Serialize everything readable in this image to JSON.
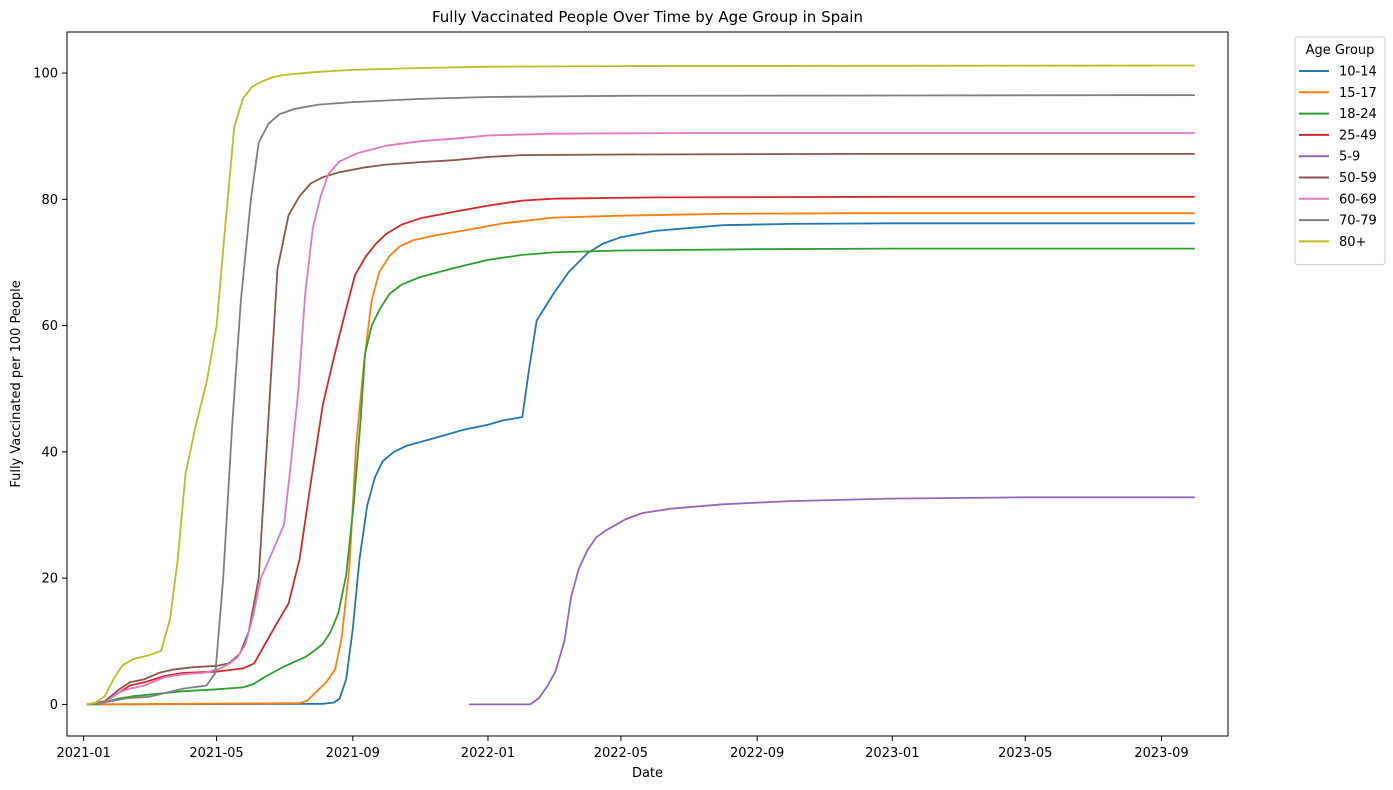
{
  "chart_data": {
    "type": "line",
    "title": "Fully Vaccinated People Over Time by Age Group in Spain",
    "xlabel": "Date",
    "ylabel": "Fully Vaccinated per 100 People",
    "x_ticks": [
      "2021-01",
      "2021-05",
      "2021-09",
      "2022-01",
      "2022-05",
      "2022-09",
      "2023-01",
      "2023-05",
      "2023-09"
    ],
    "y_ticks": [
      0,
      20,
      40,
      60,
      80,
      100
    ],
    "xlim": [
      "2020-12-17",
      "2023-10-31"
    ],
    "ylim": [
      -5,
      106.5
    ],
    "grid": false,
    "legend": {
      "title": "Age Group",
      "position": "outside-top-right"
    },
    "series": [
      {
        "name": "10-14",
        "color": "#1f77b4",
        "points": [
          [
            "2021-01-04",
            0
          ],
          [
            "2021-08-05",
            0.1
          ],
          [
            "2021-08-15",
            0.3
          ],
          [
            "2021-08-20",
            0.9
          ],
          [
            "2021-08-26",
            4
          ],
          [
            "2021-09-01",
            12
          ],
          [
            "2021-09-07",
            23
          ],
          [
            "2021-09-14",
            31.5
          ],
          [
            "2021-09-21",
            36
          ],
          [
            "2021-09-28",
            38.5
          ],
          [
            "2021-10-08",
            40
          ],
          [
            "2021-10-20",
            41
          ],
          [
            "2021-11-10",
            42
          ],
          [
            "2021-12-10",
            43.5
          ],
          [
            "2022-01-01",
            44.3
          ],
          [
            "2022-01-15",
            45
          ],
          [
            "2022-02-01",
            45.5
          ],
          [
            "2022-02-07",
            53
          ],
          [
            "2022-02-14",
            60.8
          ],
          [
            "2022-03-01",
            65
          ],
          [
            "2022-03-15",
            68.5
          ],
          [
            "2022-04-01",
            71.5
          ],
          [
            "2022-04-15",
            73
          ],
          [
            "2022-05-01",
            74
          ],
          [
            "2022-06-01",
            75
          ],
          [
            "2022-08-01",
            75.9
          ],
          [
            "2022-10-01",
            76.1
          ],
          [
            "2023-01-01",
            76.2
          ],
          [
            "2023-10-01",
            76.2
          ]
        ]
      },
      {
        "name": "15-17",
        "color": "#ff7f0e",
        "points": [
          [
            "2021-01-04",
            0
          ],
          [
            "2021-07-15",
            0.2
          ],
          [
            "2021-07-22",
            0.6
          ],
          [
            "2021-07-30",
            2
          ],
          [
            "2021-08-08",
            3.5
          ],
          [
            "2021-08-16",
            5.5
          ],
          [
            "2021-08-22",
            10.5
          ],
          [
            "2021-08-29",
            22
          ],
          [
            "2021-09-04",
            41
          ],
          [
            "2021-09-11",
            54
          ],
          [
            "2021-09-18",
            64
          ],
          [
            "2021-09-25",
            68.5
          ],
          [
            "2021-10-04",
            71
          ],
          [
            "2021-10-13",
            72.5
          ],
          [
            "2021-10-25",
            73.5
          ],
          [
            "2021-11-15",
            74.3
          ],
          [
            "2021-12-15",
            75.2
          ],
          [
            "2022-01-15",
            76.2
          ],
          [
            "2022-03-01",
            77.1
          ],
          [
            "2022-05-01",
            77.4
          ],
          [
            "2022-08-01",
            77.7
          ],
          [
            "2022-12-01",
            77.8
          ],
          [
            "2023-10-01",
            77.8
          ]
        ]
      },
      {
        "name": "18-24",
        "color": "#2ca02c",
        "points": [
          [
            "2021-01-04",
            0
          ],
          [
            "2021-01-15",
            0.1
          ],
          [
            "2021-02-01",
            0.9
          ],
          [
            "2021-02-15",
            1.3
          ],
          [
            "2021-03-15",
            1.8
          ],
          [
            "2021-04-01",
            2.1
          ],
          [
            "2021-05-01",
            2.4
          ],
          [
            "2021-05-25",
            2.7
          ],
          [
            "2021-06-03",
            3.2
          ],
          [
            "2021-06-15",
            4.5
          ],
          [
            "2021-07-01",
            6
          ],
          [
            "2021-07-20",
            7.5
          ],
          [
            "2021-07-29",
            8.6
          ],
          [
            "2021-08-05",
            9.6
          ],
          [
            "2021-08-12",
            11.5
          ],
          [
            "2021-08-19",
            14.5
          ],
          [
            "2021-08-26",
            20.5
          ],
          [
            "2021-09-02",
            32
          ],
          [
            "2021-09-08",
            45
          ],
          [
            "2021-09-12",
            55.5
          ],
          [
            "2021-09-18",
            60
          ],
          [
            "2021-09-25",
            62.5
          ],
          [
            "2021-10-04",
            65
          ],
          [
            "2021-10-15",
            66.5
          ],
          [
            "2021-11-01",
            67.7
          ],
          [
            "2021-12-01",
            69.1
          ],
          [
            "2022-01-01",
            70.4
          ],
          [
            "2022-02-01",
            71.2
          ],
          [
            "2022-03-01",
            71.6
          ],
          [
            "2022-05-01",
            71.9
          ],
          [
            "2022-09-01",
            72.1
          ],
          [
            "2023-01-01",
            72.2
          ],
          [
            "2023-10-01",
            72.2
          ]
        ]
      },
      {
        "name": "25-49",
        "color": "#d62728",
        "points": [
          [
            "2021-01-04",
            0
          ],
          [
            "2021-01-20",
            0.4
          ],
          [
            "2021-02-03",
            2
          ],
          [
            "2021-02-12",
            3
          ],
          [
            "2021-02-25",
            3.5
          ],
          [
            "2021-03-15",
            4.5
          ],
          [
            "2021-04-01",
            5
          ],
          [
            "2021-05-01",
            5.2
          ],
          [
            "2021-05-25",
            5.7
          ],
          [
            "2021-06-04",
            6.5
          ],
          [
            "2021-06-12",
            9
          ],
          [
            "2021-06-25",
            13
          ],
          [
            "2021-07-05",
            16
          ],
          [
            "2021-07-15",
            23
          ],
          [
            "2021-07-25",
            35
          ],
          [
            "2021-08-05",
            47.5
          ],
          [
            "2021-08-15",
            55
          ],
          [
            "2021-08-25",
            62
          ],
          [
            "2021-09-03",
            68
          ],
          [
            "2021-09-13",
            71
          ],
          [
            "2021-09-22",
            73
          ],
          [
            "2021-10-01",
            74.5
          ],
          [
            "2021-10-15",
            76
          ],
          [
            "2021-11-01",
            77
          ],
          [
            "2021-12-01",
            78
          ],
          [
            "2022-01-01",
            79
          ],
          [
            "2022-02-01",
            79.8
          ],
          [
            "2022-03-01",
            80.1
          ],
          [
            "2022-06-01",
            80.3
          ],
          [
            "2023-01-01",
            80.4
          ],
          [
            "2023-10-01",
            80.4
          ]
        ]
      },
      {
        "name": "5-9",
        "color": "#9467bd",
        "points": [
          [
            "2021-12-15",
            0
          ],
          [
            "2022-01-15",
            0
          ],
          [
            "2022-02-08",
            0
          ],
          [
            "2022-02-16",
            1
          ],
          [
            "2022-02-24",
            3
          ],
          [
            "2022-03-03",
            5.3
          ],
          [
            "2022-03-11",
            10
          ],
          [
            "2022-03-17",
            17
          ],
          [
            "2022-03-24",
            21.5
          ],
          [
            "2022-04-01",
            24.5
          ],
          [
            "2022-04-09",
            26.5
          ],
          [
            "2022-04-17",
            27.5
          ],
          [
            "2022-04-25",
            28.3
          ],
          [
            "2022-05-05",
            29.3
          ],
          [
            "2022-05-20",
            30.3
          ],
          [
            "2022-06-15",
            31
          ],
          [
            "2022-08-01",
            31.7
          ],
          [
            "2022-10-01",
            32.2
          ],
          [
            "2023-01-01",
            32.6
          ],
          [
            "2023-05-01",
            32.8
          ],
          [
            "2023-10-01",
            32.8
          ]
        ]
      },
      {
        "name": "50-59",
        "color": "#8c564b",
        "points": [
          [
            "2021-01-04",
            0
          ],
          [
            "2021-01-20",
            0.5
          ],
          [
            "2021-02-03",
            2.5
          ],
          [
            "2021-02-12",
            3.5
          ],
          [
            "2021-02-25",
            4
          ],
          [
            "2021-03-10",
            5
          ],
          [
            "2021-03-22",
            5.5
          ],
          [
            "2021-04-10",
            5.9
          ],
          [
            "2021-05-01",
            6.1
          ],
          [
            "2021-05-12",
            6.5
          ],
          [
            "2021-05-22",
            8
          ],
          [
            "2021-05-30",
            11.5
          ],
          [
            "2021-06-08",
            20
          ],
          [
            "2021-06-15",
            40
          ],
          [
            "2021-06-25",
            69
          ],
          [
            "2021-07-05",
            77.5
          ],
          [
            "2021-07-15",
            80.5
          ],
          [
            "2021-07-25",
            82.5
          ],
          [
            "2021-08-05",
            83.5
          ],
          [
            "2021-08-20",
            84.3
          ],
          [
            "2021-09-10",
            85
          ],
          [
            "2021-10-01",
            85.5
          ],
          [
            "2021-11-01",
            85.9
          ],
          [
            "2021-12-01",
            86.2
          ],
          [
            "2022-01-01",
            86.7
          ],
          [
            "2022-02-01",
            87
          ],
          [
            "2022-05-01",
            87.1
          ],
          [
            "2022-12-01",
            87.2
          ],
          [
            "2023-10-01",
            87.2
          ]
        ]
      },
      {
        "name": "60-69",
        "color": "#e377c2",
        "points": [
          [
            "2021-01-04",
            0
          ],
          [
            "2021-01-20",
            0.3
          ],
          [
            "2021-02-03",
            2
          ],
          [
            "2021-02-12",
            2.5
          ],
          [
            "2021-02-25",
            3
          ],
          [
            "2021-03-15",
            4.3
          ],
          [
            "2021-04-01",
            4.8
          ],
          [
            "2021-04-20",
            5
          ],
          [
            "2021-05-03",
            5.6
          ],
          [
            "2021-05-13",
            6.5
          ],
          [
            "2021-05-20",
            7.5
          ],
          [
            "2021-05-27",
            9.5
          ],
          [
            "2021-06-03",
            14
          ],
          [
            "2021-06-10",
            20
          ],
          [
            "2021-06-20",
            24
          ],
          [
            "2021-07-01",
            28.5
          ],
          [
            "2021-07-07",
            38
          ],
          [
            "2021-07-14",
            50
          ],
          [
            "2021-07-20",
            65
          ],
          [
            "2021-07-27",
            75.5
          ],
          [
            "2021-08-03",
            80.5
          ],
          [
            "2021-08-10",
            84
          ],
          [
            "2021-08-20",
            86
          ],
          [
            "2021-09-05",
            87.3
          ],
          [
            "2021-10-01",
            88.5
          ],
          [
            "2021-11-01",
            89.2
          ],
          [
            "2021-12-01",
            89.6
          ],
          [
            "2022-01-01",
            90.1
          ],
          [
            "2022-03-01",
            90.4
          ],
          [
            "2022-07-01",
            90.5
          ],
          [
            "2023-10-01",
            90.5
          ]
        ]
      },
      {
        "name": "70-79",
        "color": "#7f7f7f",
        "points": [
          [
            "2021-01-04",
            0
          ],
          [
            "2021-01-25",
            0.5
          ],
          [
            "2021-02-10",
            1
          ],
          [
            "2021-03-01",
            1.2
          ],
          [
            "2021-03-15",
            1.8
          ],
          [
            "2021-04-01",
            2.5
          ],
          [
            "2021-04-22",
            3
          ],
          [
            "2021-04-30",
            5
          ],
          [
            "2021-05-07",
            20
          ],
          [
            "2021-05-15",
            44
          ],
          [
            "2021-05-23",
            64
          ],
          [
            "2021-06-01",
            80
          ],
          [
            "2021-06-08",
            89
          ],
          [
            "2021-06-17",
            92
          ],
          [
            "2021-06-27",
            93.5
          ],
          [
            "2021-07-10",
            94.3
          ],
          [
            "2021-08-01",
            95
          ],
          [
            "2021-09-01",
            95.4
          ],
          [
            "2021-11-01",
            95.9
          ],
          [
            "2022-01-01",
            96.2
          ],
          [
            "2022-05-01",
            96.4
          ],
          [
            "2023-10-01",
            96.5
          ]
        ]
      },
      {
        "name": "80+",
        "color": "#bcbd22",
        "points": [
          [
            "2021-01-04",
            0
          ],
          [
            "2021-01-12",
            0.3
          ],
          [
            "2021-01-20",
            1.3
          ],
          [
            "2021-01-28",
            4
          ],
          [
            "2021-02-05",
            6.2
          ],
          [
            "2021-02-15",
            7.2
          ],
          [
            "2021-03-01",
            7.8
          ],
          [
            "2021-03-12",
            8.5
          ],
          [
            "2021-03-20",
            13.5
          ],
          [
            "2021-03-27",
            23
          ],
          [
            "2021-04-03",
            36.5
          ],
          [
            "2021-04-12",
            44
          ],
          [
            "2021-04-22",
            51
          ],
          [
            "2021-05-01",
            60
          ],
          [
            "2021-05-09",
            76
          ],
          [
            "2021-05-17",
            91.5
          ],
          [
            "2021-05-25",
            96
          ],
          [
            "2021-06-02",
            97.8
          ],
          [
            "2021-06-10",
            98.6
          ],
          [
            "2021-06-20",
            99.3
          ],
          [
            "2021-07-01",
            99.7
          ],
          [
            "2021-08-01",
            100.2
          ],
          [
            "2021-09-01",
            100.5
          ],
          [
            "2021-11-01",
            100.8
          ],
          [
            "2022-01-01",
            101
          ],
          [
            "2022-05-01",
            101.1
          ],
          [
            "2023-10-01",
            101.2
          ]
        ]
      }
    ]
  }
}
